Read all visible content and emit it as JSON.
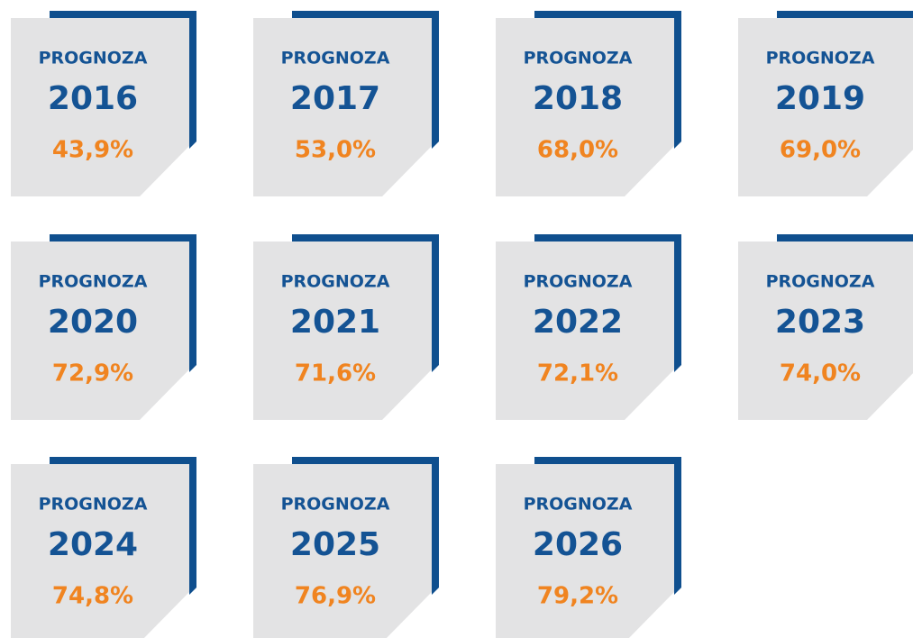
{
  "cards": [
    {
      "label": "PROGNOZA",
      "year": "2016",
      "value": "43,9%"
    },
    {
      "label": "PROGNOZA",
      "year": "2017",
      "value": "53,0%"
    },
    {
      "label": "PROGNOZA",
      "year": "2018",
      "value": "68,0%"
    },
    {
      "label": "PROGNOZA",
      "year": "2019",
      "value": "69,0%"
    },
    {
      "label": "PROGNOZA",
      "year": "2020",
      "value": "72,9%"
    },
    {
      "label": "PROGNOZA",
      "year": "2021",
      "value": "71,6%"
    },
    {
      "label": "PROGNOZA",
      "year": "2022",
      "value": "72,1%"
    },
    {
      "label": "PROGNOZA",
      "year": "2023",
      "value": "74,0%"
    },
    {
      "label": "PROGNOZA",
      "year": "2024",
      "value": "74,8%"
    },
    {
      "label": "PROGNOZA",
      "year": "2025",
      "value": "76,9%"
    },
    {
      "label": "PROGNOZA",
      "year": "2026",
      "value": "79,2%"
    }
  ]
}
